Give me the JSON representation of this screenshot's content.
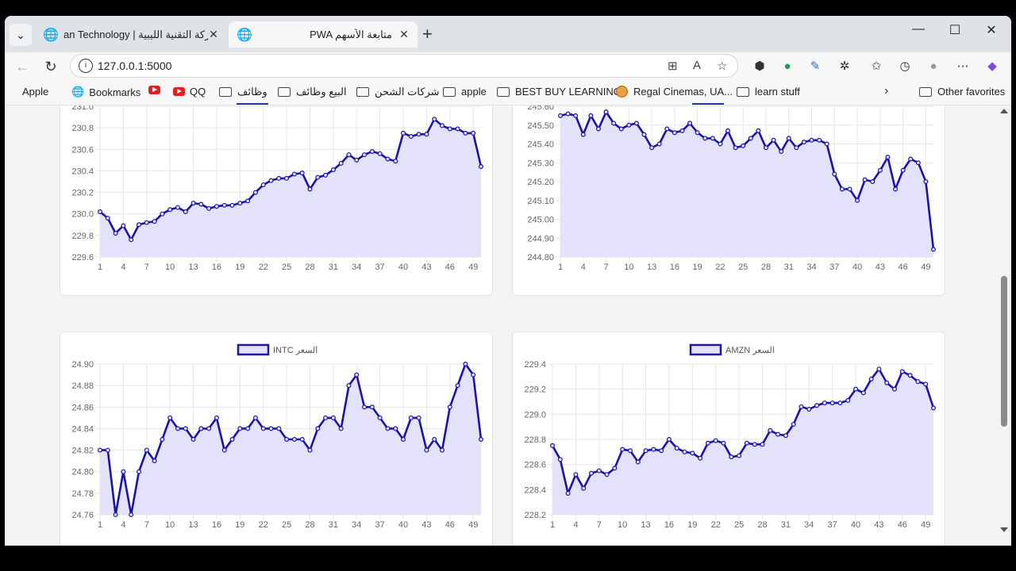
{
  "tabs": [
    {
      "title": "an Technology | شركة التقنية الليبية",
      "active": false
    },
    {
      "title": "PWA متابعة الأسهم",
      "active": true
    }
  ],
  "address": {
    "url": "127.0.0.1:5000"
  },
  "bookmarks": [
    {
      "label": "Apple",
      "icon": "apple-icon"
    },
    {
      "label": "Bookmarks",
      "icon": "globe-icon"
    },
    {
      "label": "",
      "icon": "youtube-icon"
    },
    {
      "label": "QQ",
      "icon": "youtube-icon"
    },
    {
      "label": "وظائف",
      "icon": "folder-icon"
    },
    {
      "label": "البيع وظائف",
      "icon": "folder-icon"
    },
    {
      "label": "شركات الشحن",
      "icon": "folder-icon"
    },
    {
      "label": "apple",
      "icon": "folder-icon"
    },
    {
      "label": "BEST BUY LEARNING",
      "icon": "folder-icon"
    },
    {
      "label": "Regal Cinemas, UA...",
      "icon": "regal-icon"
    },
    {
      "label": "learn stuff",
      "icon": "folder-icon"
    }
  ],
  "other_favorites": "Other favorites",
  "colors": {
    "line": "#1a14a8",
    "fill": "#e4e2fb",
    "grid": "#e6e6e6",
    "tick": "#666666"
  },
  "chart_data": [
    {
      "type": "area",
      "legend": "",
      "ylim": [
        229.6,
        231.0
      ],
      "yticks": [
        "229.6",
        "229.8",
        "230.0",
        "230.2",
        "230.4",
        "230.6",
        "230.8",
        "231.0"
      ],
      "xticks": [
        "1",
        "4",
        "7",
        "10",
        "13",
        "16",
        "19",
        "22",
        "25",
        "28",
        "31",
        "34",
        "37",
        "40",
        "43",
        "46",
        "49"
      ],
      "values": [
        230.02,
        229.96,
        229.82,
        229.89,
        229.76,
        229.9,
        229.92,
        229.93,
        230.0,
        230.04,
        230.06,
        230.02,
        230.1,
        230.09,
        230.05,
        230.07,
        230.08,
        230.08,
        230.1,
        230.12,
        230.2,
        230.27,
        230.31,
        230.33,
        230.33,
        230.37,
        230.38,
        230.23,
        230.34,
        230.36,
        230.41,
        230.47,
        230.55,
        230.5,
        230.55,
        230.58,
        230.56,
        230.51,
        230.49,
        230.75,
        230.72,
        230.74,
        230.74,
        230.88,
        230.82,
        230.79,
        230.79,
        230.75,
        230.75,
        230.44
      ]
    },
    {
      "type": "area",
      "legend": "",
      "ylim": [
        244.8,
        245.6
      ],
      "yticks": [
        "244.80",
        "244.90",
        "245.00",
        "245.10",
        "245.20",
        "245.30",
        "245.40",
        "245.50",
        "245.60"
      ],
      "xticks": [
        "1",
        "4",
        "7",
        "10",
        "13",
        "16",
        "19",
        "22",
        "25",
        "28",
        "31",
        "34",
        "37",
        "40",
        "43",
        "46",
        "49"
      ],
      "values": [
        245.55,
        245.56,
        245.55,
        245.45,
        245.55,
        245.48,
        245.57,
        245.51,
        245.48,
        245.5,
        245.51,
        245.45,
        245.38,
        245.4,
        245.48,
        245.46,
        245.47,
        245.51,
        245.46,
        245.43,
        245.43,
        245.4,
        245.47,
        245.38,
        245.39,
        245.43,
        245.47,
        245.38,
        245.42,
        245.36,
        245.43,
        245.38,
        245.41,
        245.42,
        245.42,
        245.4,
        245.24,
        245.16,
        245.16,
        245.1,
        245.21,
        245.2,
        245.26,
        245.33,
        245.16,
        245.26,
        245.32,
        245.3,
        245.2,
        244.84
      ]
    },
    {
      "type": "area",
      "legend": "INTC السعر",
      "ylim": [
        24.76,
        24.9
      ],
      "yticks": [
        "24.76",
        "24.78",
        "24.80",
        "24.82",
        "24.84",
        "24.86",
        "24.88",
        "24.90"
      ],
      "xticks": [
        "1",
        "4",
        "7",
        "10",
        "13",
        "16",
        "19",
        "22",
        "25",
        "28",
        "31",
        "34",
        "37",
        "40",
        "43",
        "46",
        "49"
      ],
      "values": [
        24.82,
        24.82,
        24.76,
        24.8,
        24.76,
        24.8,
        24.82,
        24.81,
        24.83,
        24.85,
        24.84,
        24.84,
        24.83,
        24.84,
        24.84,
        24.85,
        24.82,
        24.83,
        24.84,
        24.84,
        24.85,
        24.84,
        24.84,
        24.84,
        24.83,
        24.83,
        24.83,
        24.82,
        24.84,
        24.85,
        24.85,
        24.84,
        24.88,
        24.89,
        24.86,
        24.86,
        24.85,
        24.84,
        24.84,
        24.83,
        24.85,
        24.85,
        24.82,
        24.83,
        24.82,
        24.86,
        24.88,
        24.9,
        24.89,
        24.83
      ]
    },
    {
      "type": "area",
      "legend": "AMZN السعر",
      "ylim": [
        228.2,
        229.4
      ],
      "yticks": [
        "228.2",
        "228.4",
        "228.6",
        "228.8",
        "229.0",
        "229.2",
        "229.4"
      ],
      "xticks": [
        "1",
        "4",
        "7",
        "10",
        "13",
        "16",
        "19",
        "22",
        "25",
        "28",
        "31",
        "34",
        "37",
        "40",
        "43",
        "46",
        "49"
      ],
      "values": [
        228.75,
        228.64,
        228.37,
        228.52,
        228.41,
        228.53,
        228.55,
        228.52,
        228.57,
        228.72,
        228.71,
        228.62,
        228.71,
        228.72,
        228.71,
        228.8,
        228.73,
        228.7,
        228.69,
        228.65,
        228.77,
        228.79,
        228.77,
        228.66,
        228.67,
        228.77,
        228.76,
        228.76,
        228.87,
        228.84,
        228.83,
        228.92,
        229.06,
        229.04,
        229.07,
        229.09,
        229.09,
        229.09,
        229.11,
        229.2,
        229.17,
        229.28,
        229.36,
        229.25,
        229.2,
        229.34,
        229.31,
        229.26,
        229.24,
        229.05
      ]
    }
  ]
}
